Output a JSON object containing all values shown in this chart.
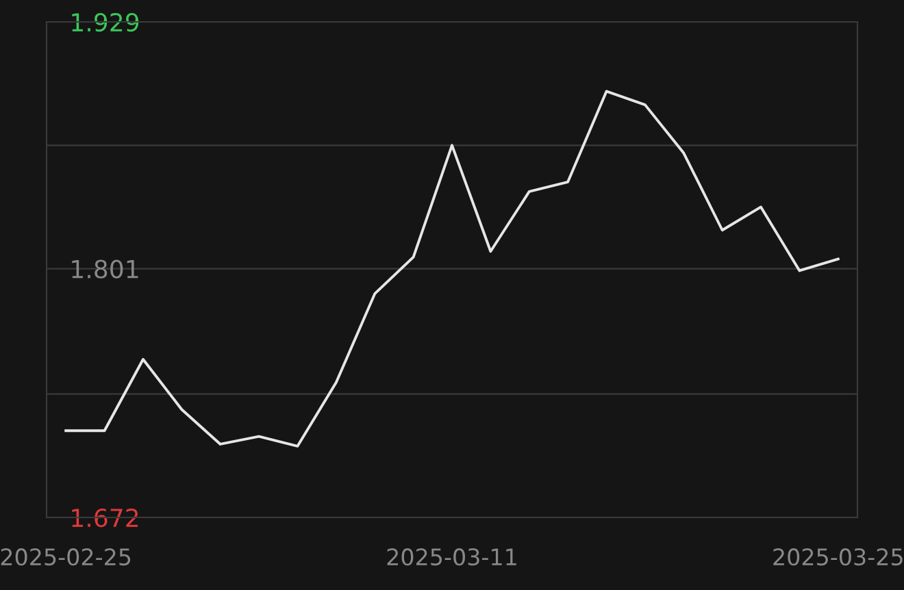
{
  "chart_data": {
    "type": "line",
    "categories": [
      "2025-02-25",
      null,
      null,
      null,
      null,
      null,
      null,
      null,
      null,
      null,
      "2025-03-11",
      null,
      null,
      null,
      null,
      null,
      null,
      null,
      null,
      null,
      "2025-03-25"
    ],
    "series": [
      {
        "color": "#e6e6e6",
        "values": [
          1.717,
          1.717,
          1.754,
          1.728,
          1.71,
          1.714,
          1.709,
          1.742,
          1.788,
          1.807,
          1.865,
          1.81,
          1.841,
          1.846,
          1.893,
          1.886,
          1.861,
          1.821,
          1.833,
          1.8,
          1.806
        ]
      }
    ],
    "ylim": [
      1.672,
      1.929
    ],
    "yticks": [
      1.672,
      {
        "value": 1.736,
        "label": null
      },
      1.801,
      {
        "value": 1.865,
        "label": null
      },
      1.929
    ],
    "grid": "y",
    "marker": "none",
    "line_style": "solid",
    "legend": false
  }
}
